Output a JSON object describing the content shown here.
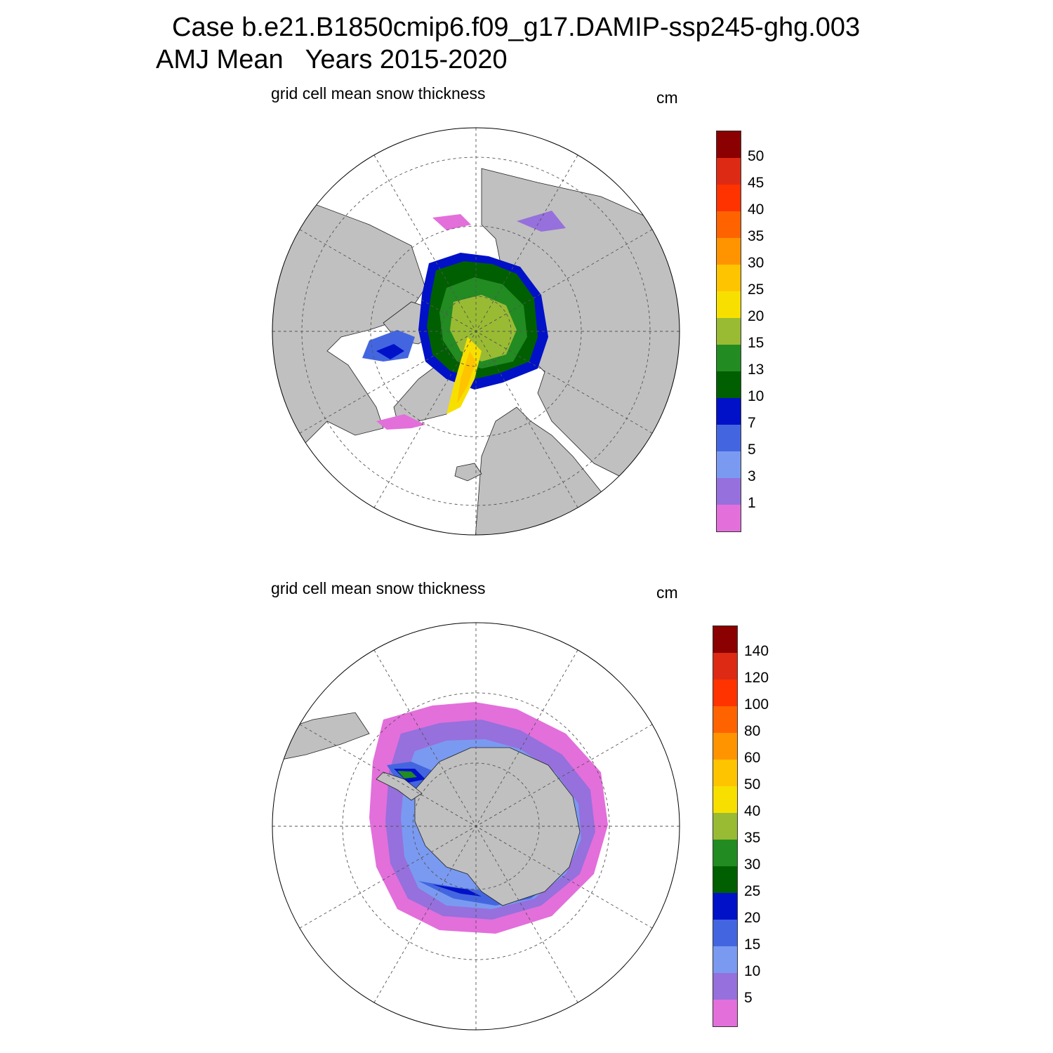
{
  "figure": {
    "title_line1": "Case b.e21.B1850cmip6.f09_g17.DAMIP-ssp245-ghg.003",
    "title_line2": "AMJ Mean   Years 2015-2020"
  },
  "panels": [
    {
      "id": "north",
      "hemisphere": "Northern Hemisphere (Arctic) polar stereographic",
      "subtitle": "grid cell mean snow thickness",
      "units": "cm",
      "colorbar": {
        "labels": [
          "1",
          "3",
          "5",
          "7",
          "10",
          "13",
          "15",
          "20",
          "25",
          "30",
          "35",
          "40",
          "45",
          "50"
        ],
        "colors": [
          "#e36fdb",
          "#9670dc",
          "#7a9af1",
          "#4366e0",
          "#0011c8",
          "#005f00",
          "#228b22",
          "#99bb33",
          "#f7e000",
          "#ffc400",
          "#ff9400",
          "#ff6300",
          "#ff3300",
          "#dd2a14",
          "#8b0000"
        ]
      }
    },
    {
      "id": "south",
      "hemisphere": "Southern Hemisphere (Antarctic) polar stereographic",
      "subtitle": "grid cell mean snow thickness",
      "units": "cm",
      "colorbar": {
        "labels": [
          "5",
          "10",
          "15",
          "20",
          "25",
          "30",
          "35",
          "40",
          "50",
          "60",
          "80",
          "100",
          "120",
          "140"
        ],
        "colors": [
          "#e36fdb",
          "#9670dc",
          "#7a9af1",
          "#4366e0",
          "#0011c8",
          "#005f00",
          "#228b22",
          "#99bb33",
          "#f7e000",
          "#ffc400",
          "#ff9400",
          "#ff6300",
          "#ff3300",
          "#dd2a14",
          "#8b0000"
        ]
      }
    }
  ],
  "colors": {
    "land": "#c0c0c0",
    "ocean": "#ffffff",
    "grid": "#555555"
  }
}
